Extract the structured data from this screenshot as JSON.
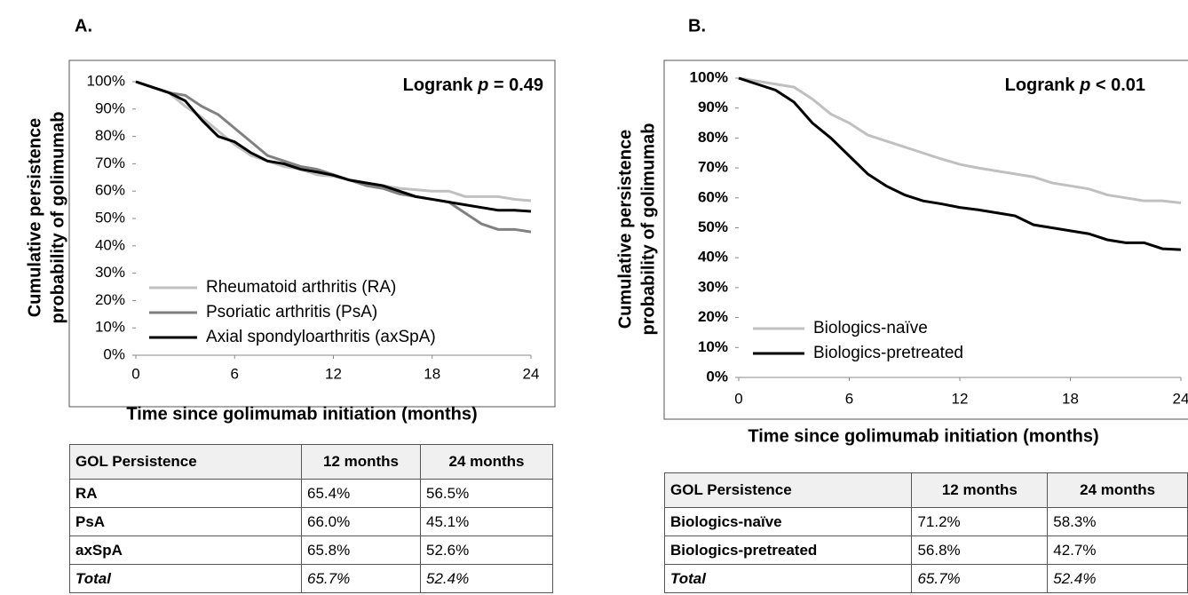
{
  "chart_data": [
    {
      "type": "line",
      "label": "A.",
      "annotation_parts": [
        "Logrank ",
        "p",
        " = 0.49"
      ],
      "x_label": "Time since golimumab initiation (months)",
      "y_label": [
        "Cumulative persistence",
        "probability of golimumab"
      ],
      "x": [
        0,
        1,
        2,
        3,
        4,
        5,
        6,
        7,
        8,
        9,
        10,
        11,
        12,
        13,
        14,
        15,
        16,
        17,
        18,
        19,
        20,
        21,
        22,
        23,
        24
      ],
      "xlim": [
        0,
        24
      ],
      "xticks": [
        0,
        6,
        12,
        18,
        24
      ],
      "ylim": [
        0,
        100
      ],
      "yticks": [
        {
          "value": 0,
          "label": "0%"
        },
        {
          "value": 10,
          "label": "10%"
        },
        {
          "value": 20,
          "label": "20%"
        },
        {
          "value": 30,
          "label": "30%"
        },
        {
          "value": 40,
          "label": "40%"
        },
        {
          "value": 50,
          "label": "50%"
        },
        {
          "value": 60,
          "label": "60%"
        },
        {
          "value": 70,
          "label": "70%"
        },
        {
          "value": 80,
          "label": "80%"
        },
        {
          "value": 90,
          "label": "90%"
        },
        {
          "value": 100,
          "label": "100%"
        }
      ],
      "legend": "lower left",
      "series": [
        {
          "name": "Rheumatoid arthritis (RA)",
          "color": "#c0c0c0",
          "values": [
            100,
            98,
            96,
            91,
            87,
            82,
            77,
            73,
            71,
            69,
            68,
            66,
            65.4,
            64,
            63,
            62,
            61,
            60.5,
            60,
            60,
            58,
            58,
            58,
            57,
            56.5
          ]
        },
        {
          "name": "Psoriatic arthritis (PsA)",
          "color": "#808080",
          "values": [
            100,
            98,
            96,
            95,
            91,
            88,
            83,
            78,
            73,
            71,
            69,
            68,
            66,
            64,
            62,
            61,
            59,
            58,
            57,
            56,
            52,
            48,
            46,
            46,
            45.1
          ]
        },
        {
          "name": "Axial spondyloarthritis (axSpA)",
          "color": "#000000",
          "values": [
            100,
            98,
            96,
            93,
            86,
            80,
            78,
            74,
            71,
            70,
            68,
            67,
            65.8,
            64,
            63,
            62,
            60,
            58,
            57,
            56,
            55,
            54,
            53,
            53,
            52.6
          ]
        }
      ]
    },
    {
      "type": "line",
      "label": "B.",
      "annotation_parts": [
        "Logrank ",
        "p",
        " < 0.01"
      ],
      "x_label": "Time since golimumab initiation (months)",
      "y_label": [
        "Cumulative persistence",
        "probability of golimumab"
      ],
      "x": [
        0,
        1,
        2,
        3,
        4,
        5,
        6,
        7,
        8,
        9,
        10,
        11,
        12,
        13,
        14,
        15,
        16,
        17,
        18,
        19,
        20,
        21,
        22,
        23,
        24
      ],
      "xlim": [
        0,
        24
      ],
      "xticks": [
        0,
        6,
        12,
        18,
        24
      ],
      "ylim": [
        0,
        100
      ],
      "yticks": [
        {
          "value": 0,
          "label": "0%"
        },
        {
          "value": 10,
          "label": "10%"
        },
        {
          "value": 20,
          "label": "20%"
        },
        {
          "value": 30,
          "label": "30%"
        },
        {
          "value": 40,
          "label": "40%"
        },
        {
          "value": 50,
          "label": "50%"
        },
        {
          "value": 60,
          "label": "60%"
        },
        {
          "value": 70,
          "label": "70%"
        },
        {
          "value": 80,
          "label": "80%"
        },
        {
          "value": 90,
          "label": "90%"
        },
        {
          "value": 100,
          "label": "100%"
        }
      ],
      "legend": "lower left",
      "series": [
        {
          "name": "Biologics-naïve",
          "color": "#c0c0c0",
          "values": [
            100,
            99,
            98,
            97,
            93,
            88,
            85,
            81,
            79,
            77,
            75,
            73,
            71.2,
            70,
            69,
            68,
            67,
            65,
            64,
            63,
            61,
            60,
            59,
            59,
            58.3
          ]
        },
        {
          "name": "Biologics-pretreated",
          "color": "#000000",
          "values": [
            100,
            98,
            96,
            92,
            85,
            80,
            74,
            68,
            64,
            61,
            59,
            58,
            56.8,
            56,
            55,
            54,
            51,
            50,
            49,
            48,
            46,
            45,
            45,
            43,
            42.7
          ]
        }
      ]
    }
  ],
  "tables": [
    {
      "header": [
        "GOL Persistence",
        "12 months",
        "24 months"
      ],
      "rows": [
        [
          "RA",
          "65.4%",
          "56.5%"
        ],
        [
          "PsA",
          "66.0%",
          "45.1%"
        ],
        [
          "axSpA",
          "65.8%",
          "52.6%"
        ],
        [
          "Total",
          "65.7%",
          "52.4%"
        ]
      ]
    },
    {
      "header": [
        "GOL Persistence",
        "12 months",
        "24 months"
      ],
      "rows": [
        [
          "Biologics-naïve",
          "71.2%",
          "58.3%"
        ],
        [
          "Biologics-pretreated",
          "56.8%",
          "42.7%"
        ],
        [
          "Total",
          "65.7%",
          "52.4%"
        ]
      ]
    }
  ]
}
